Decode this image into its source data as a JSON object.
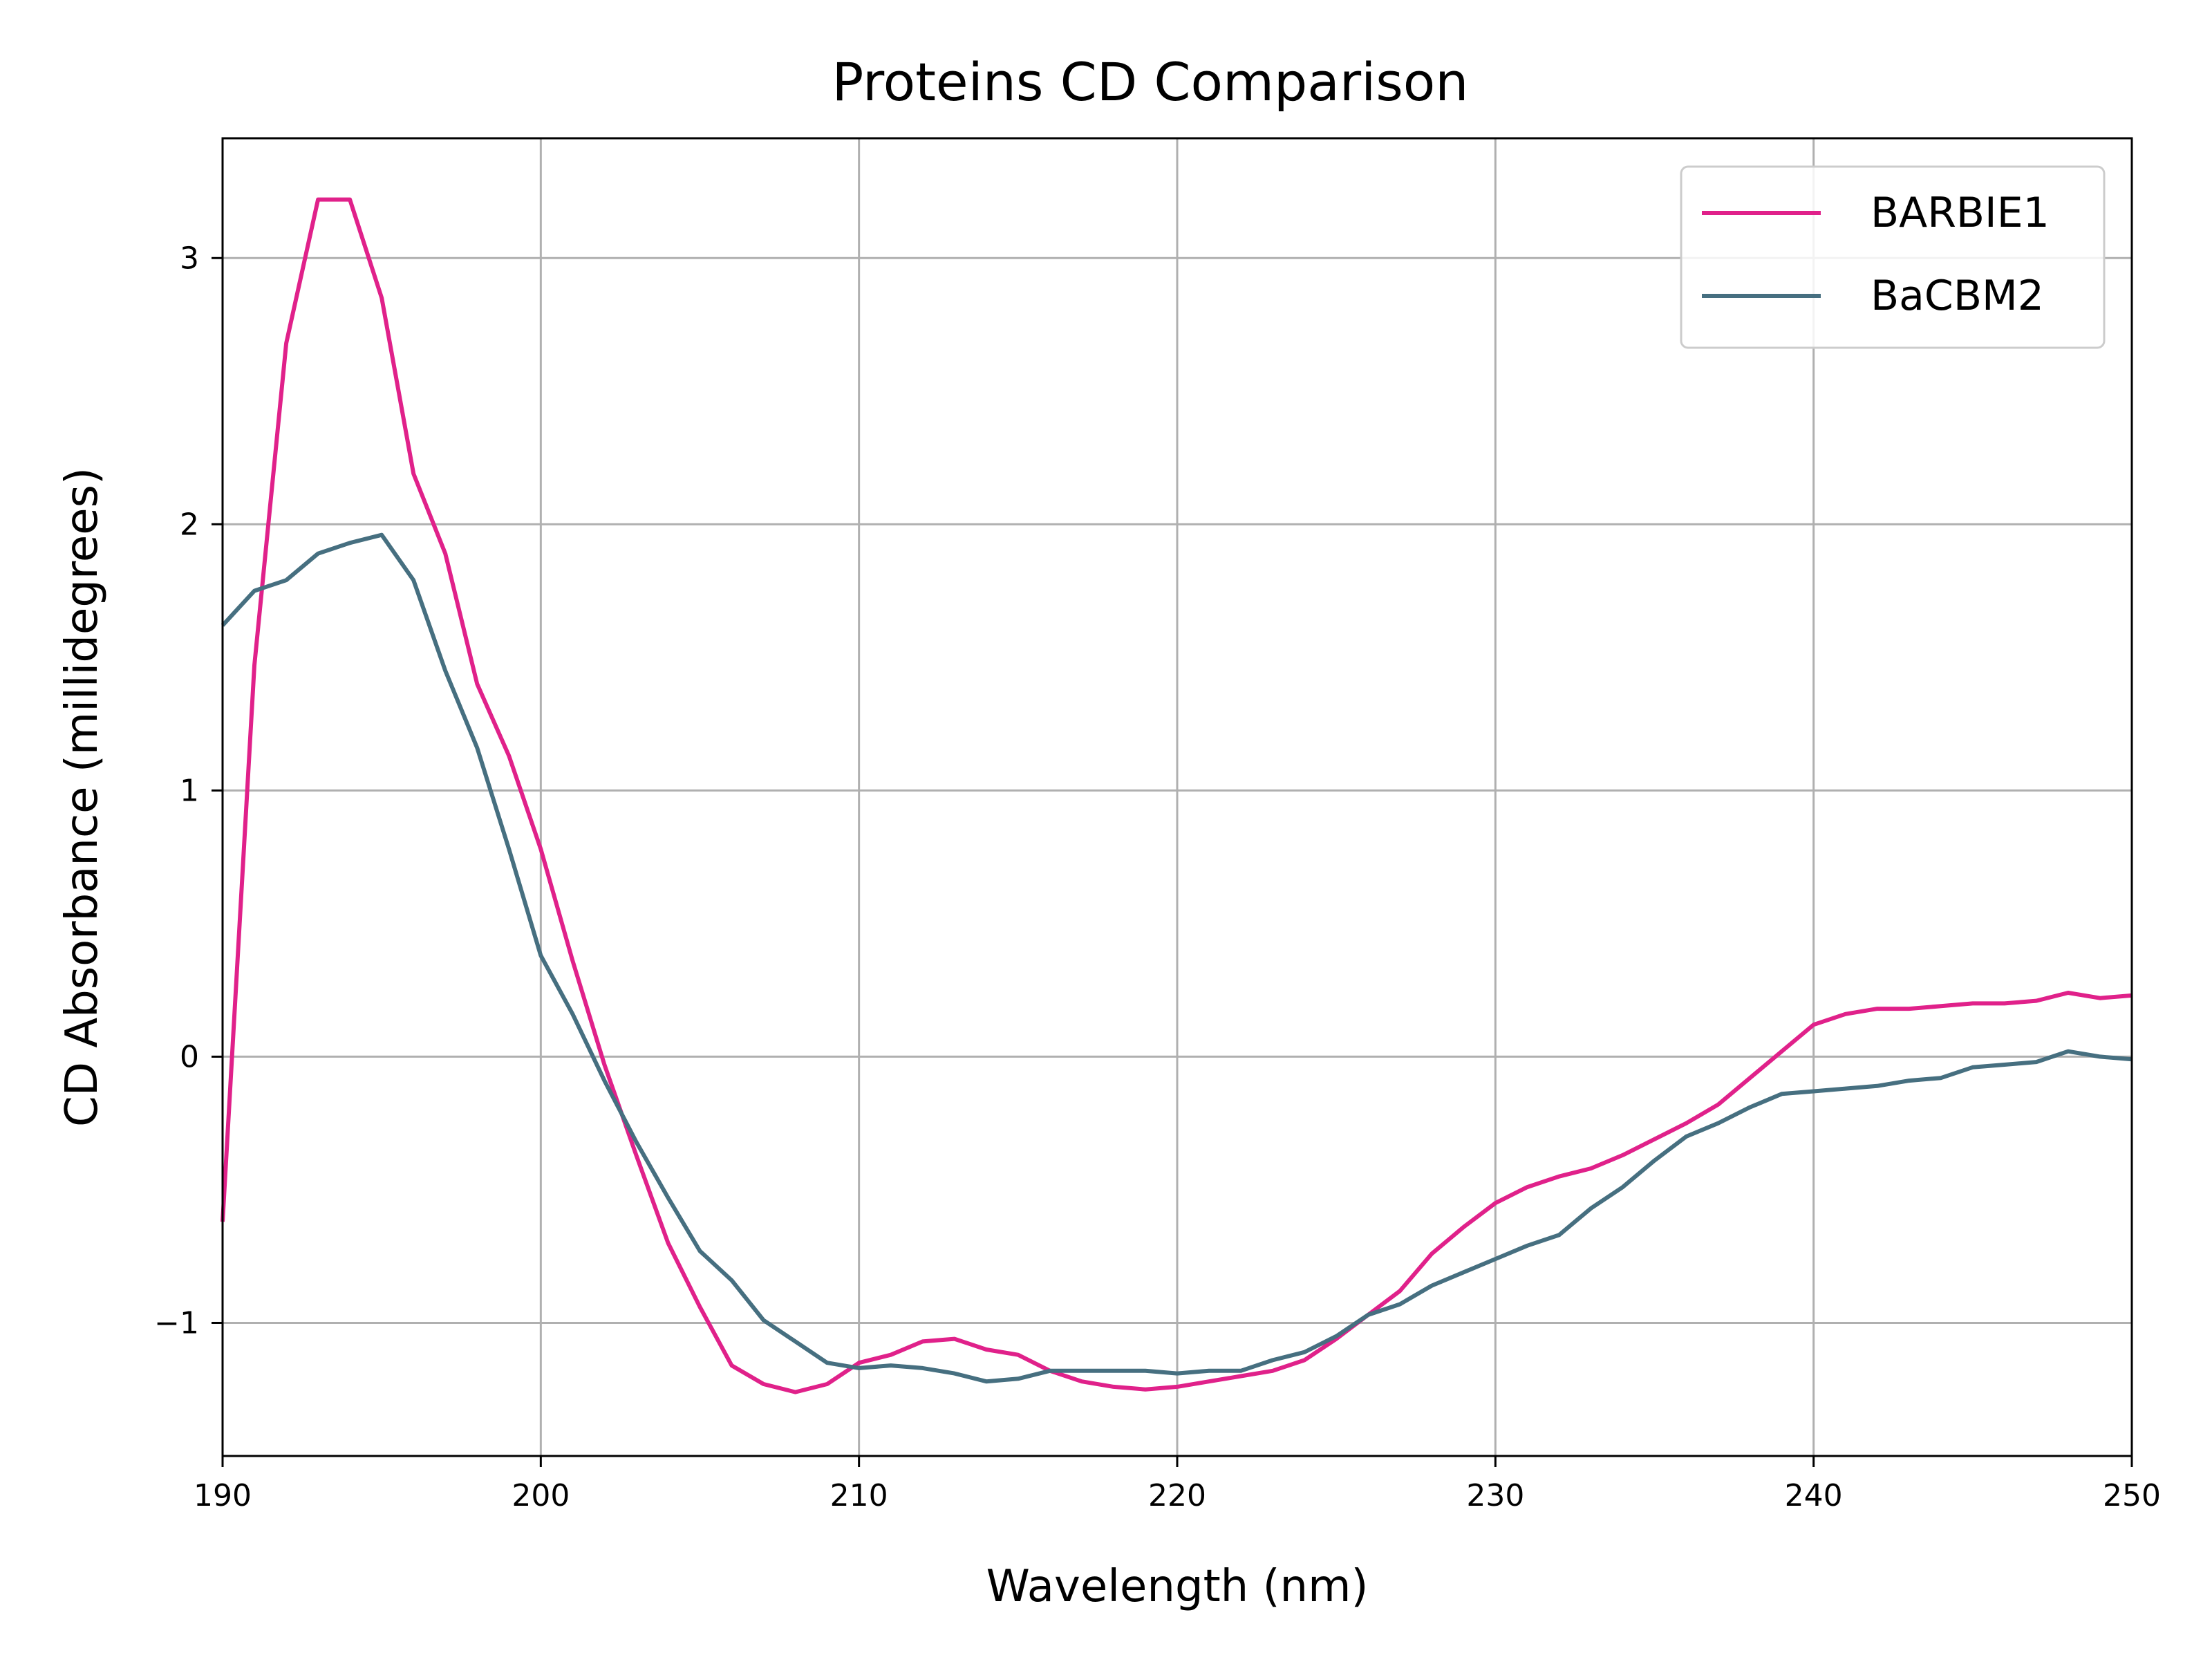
{
  "chart_data": {
    "type": "line",
    "title": "Proteins CD Comparison",
    "xlabel": "Wavelength (nm)",
    "ylabel": "CD Absorbance (millidegrees)",
    "xlim": [
      190,
      250
    ],
    "ylim": [
      -1.5,
      3.45
    ],
    "x_ticks": [
      190,
      200,
      210,
      220,
      230,
      240,
      250
    ],
    "x_tick_labels": [
      "190",
      "200",
      "210",
      "220",
      "230",
      "240",
      "250"
    ],
    "y_ticks": [
      -1,
      0,
      1,
      2,
      3
    ],
    "y_tick_labels": [
      "−1",
      "0",
      "1",
      "2",
      "3"
    ],
    "grid": true,
    "legend_position": "top-right",
    "x": [
      190,
      191,
      192,
      193,
      194,
      195,
      196,
      197,
      198,
      199,
      200,
      201,
      202,
      203,
      204,
      205,
      206,
      207,
      208,
      209,
      210,
      211,
      212,
      213,
      214,
      215,
      216,
      217,
      218,
      219,
      220,
      221,
      222,
      223,
      224,
      225,
      226,
      227,
      228,
      229,
      230,
      231,
      232,
      233,
      234,
      235,
      236,
      237,
      238,
      239,
      240,
      241,
      242,
      243,
      244,
      245,
      246,
      247,
      248,
      249,
      250
    ],
    "series": [
      {
        "name": "BARBIE1",
        "color": "#e0218a",
        "values": [
          -0.62,
          1.47,
          2.68,
          3.22,
          3.22,
          2.85,
          2.19,
          1.89,
          1.4,
          1.13,
          0.78,
          0.36,
          -0.03,
          -0.37,
          -0.7,
          -0.94,
          -1.16,
          -1.23,
          -1.26,
          -1.23,
          -1.15,
          -1.12,
          -1.07,
          -1.06,
          -1.1,
          -1.12,
          -1.18,
          -1.22,
          -1.24,
          -1.25,
          -1.24,
          -1.22,
          -1.2,
          -1.18,
          -1.14,
          -1.06,
          -0.97,
          -0.88,
          -0.74,
          -0.64,
          -0.55,
          -0.49,
          -0.45,
          -0.42,
          -0.37,
          -0.31,
          -0.25,
          -0.18,
          -0.08,
          0.02,
          0.12,
          0.16,
          0.18,
          0.18,
          0.19,
          0.2,
          0.2,
          0.21,
          0.24,
          0.22,
          0.23
        ]
      },
      {
        "name": "BaCBM2",
        "color": "#466f80",
        "values": [
          1.62,
          1.75,
          1.79,
          1.89,
          1.93,
          1.96,
          1.79,
          1.45,
          1.16,
          0.78,
          0.38,
          0.16,
          -0.09,
          -0.32,
          -0.53,
          -0.73,
          -0.84,
          -0.99,
          -1.07,
          -1.15,
          -1.17,
          -1.16,
          -1.17,
          -1.19,
          -1.22,
          -1.21,
          -1.18,
          -1.18,
          -1.18,
          -1.18,
          -1.19,
          -1.18,
          -1.18,
          -1.14,
          -1.11,
          -1.05,
          -0.97,
          -0.93,
          -0.86,
          -0.81,
          -0.76,
          -0.71,
          -0.67,
          -0.57,
          -0.49,
          -0.39,
          -0.3,
          -0.25,
          -0.19,
          -0.14,
          -0.13,
          -0.12,
          -0.11,
          -0.09,
          -0.08,
          -0.04,
          -0.03,
          -0.02,
          0.02,
          0.0,
          -0.01
        ]
      }
    ]
  }
}
